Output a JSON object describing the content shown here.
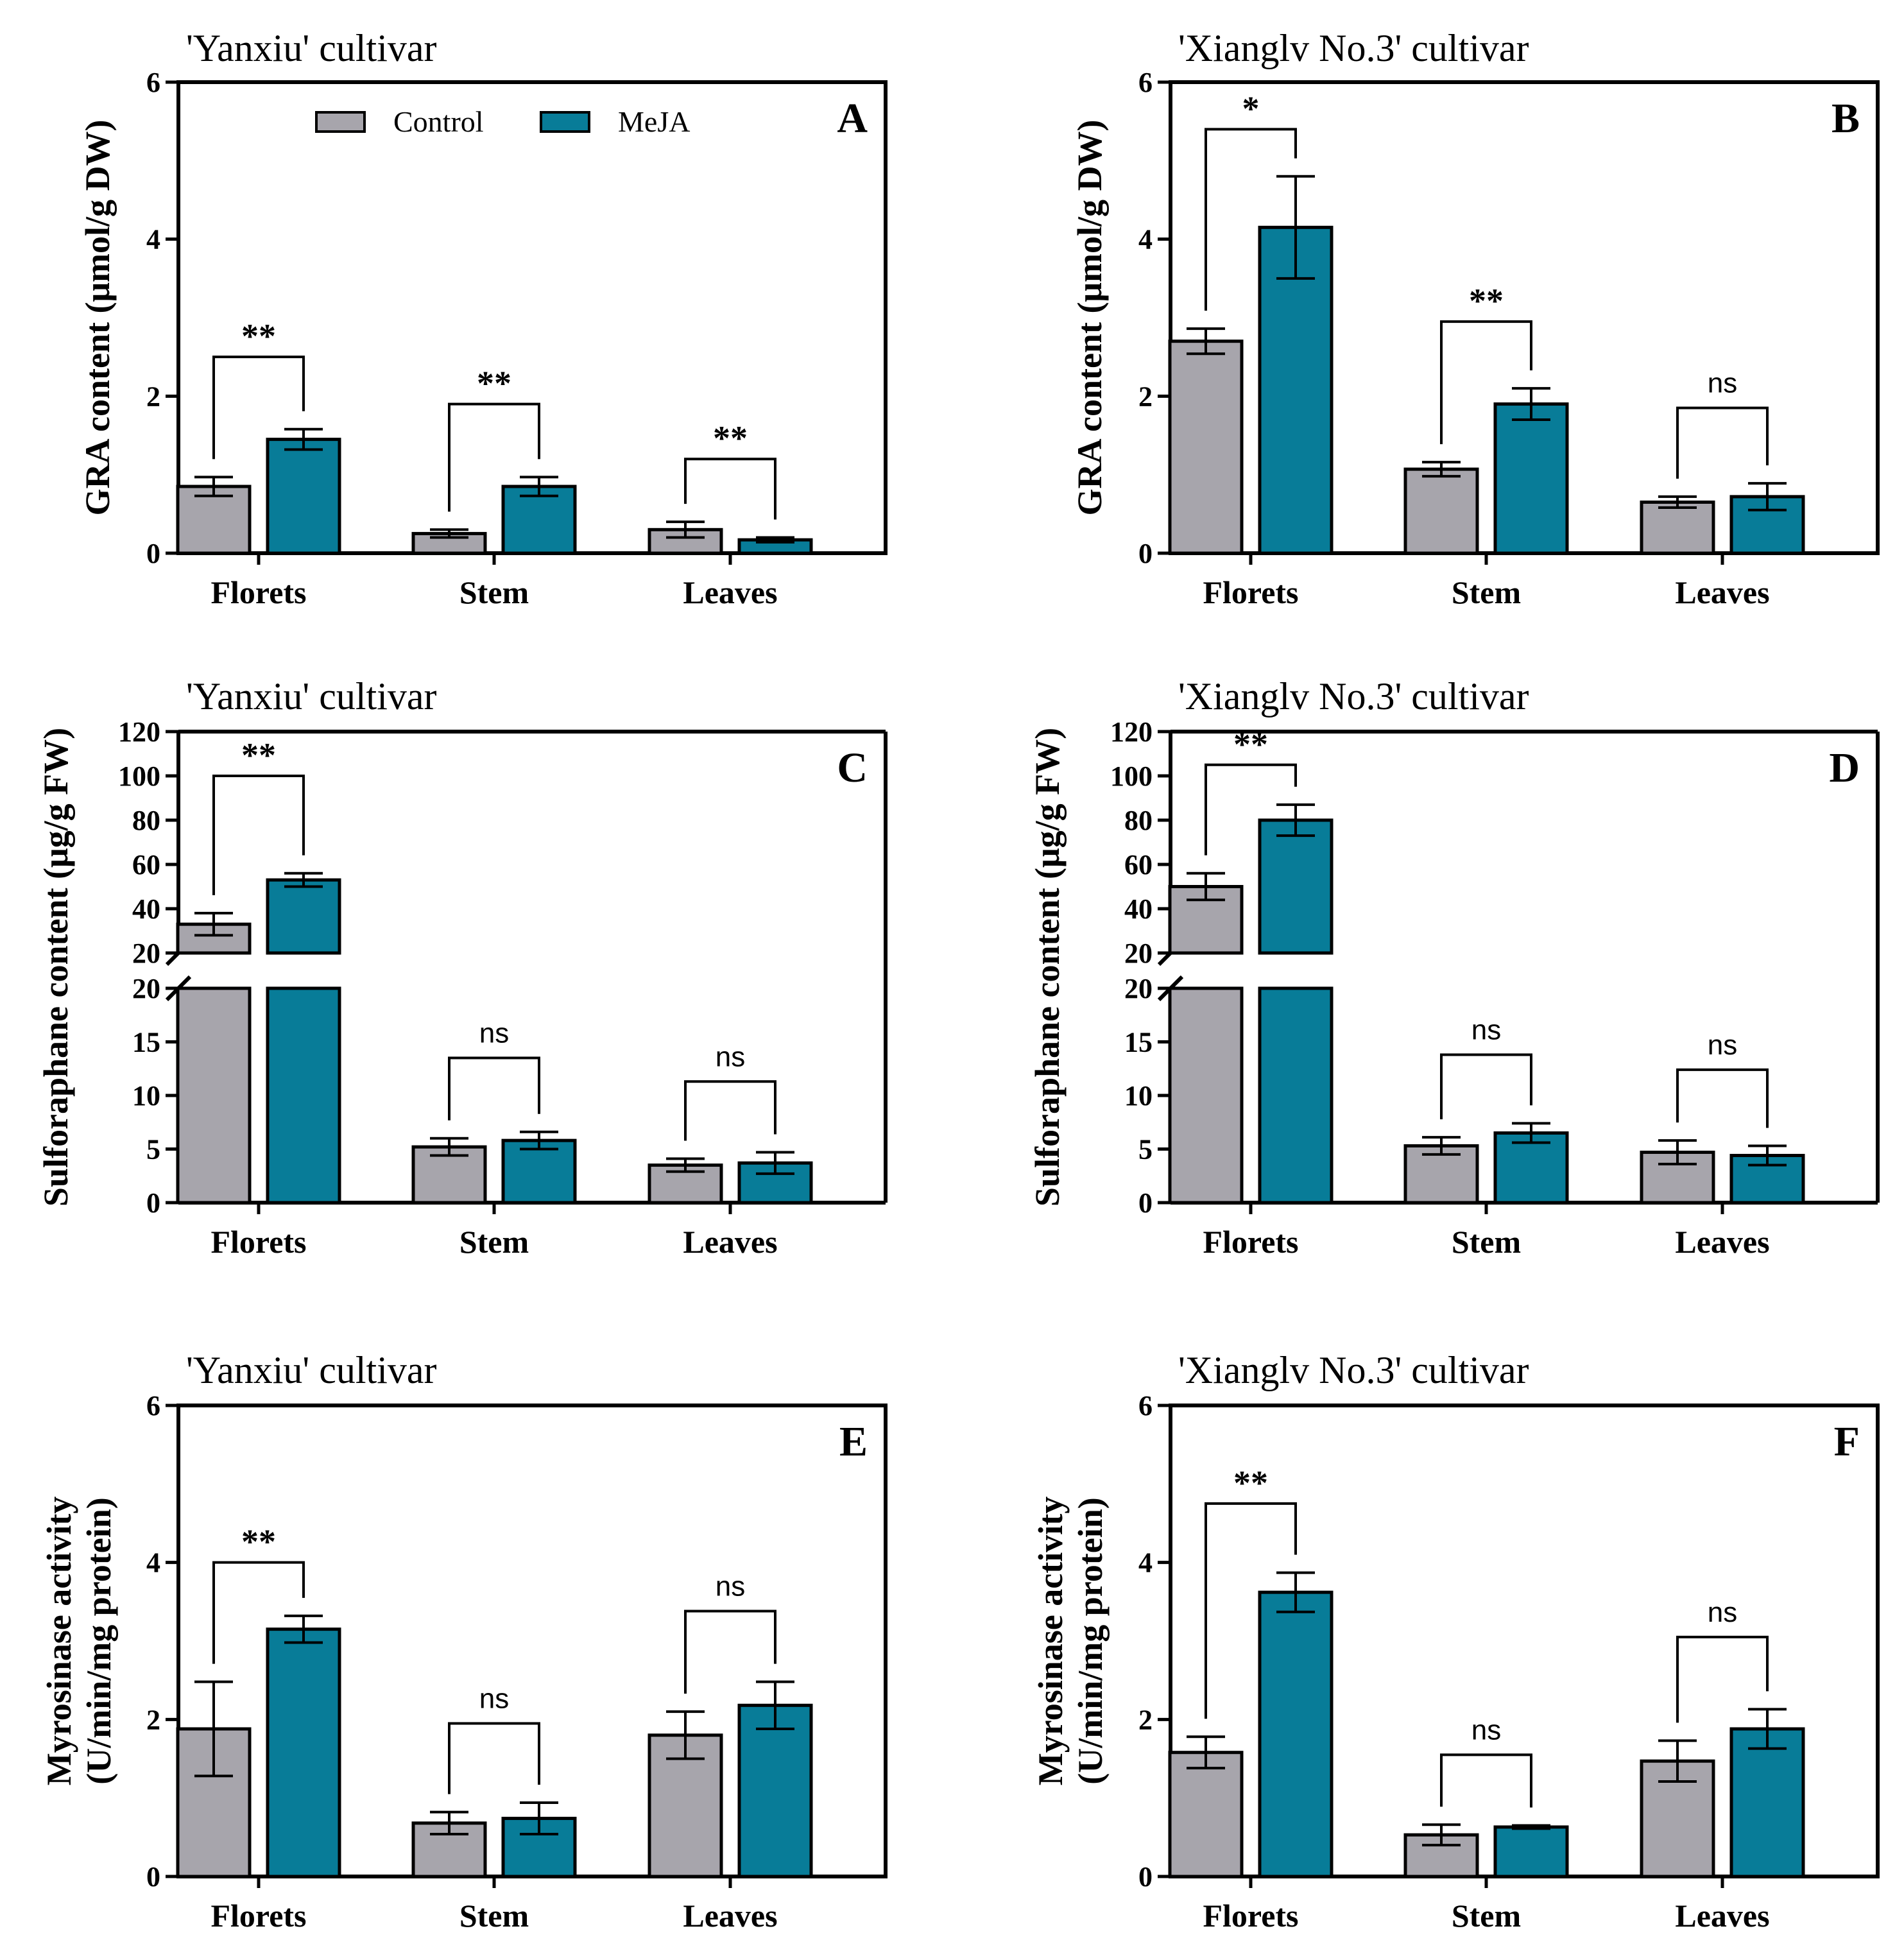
{
  "colors": {
    "control": "#a7a5ac",
    "meja": "#087c98",
    "stroke": "#000000"
  },
  "legend": {
    "control": "Control",
    "meja": "MeJA"
  },
  "chart_data": [
    {
      "type": "bar",
      "letter": "A",
      "title": "'Yanxiu' cultivar",
      "ylabel": [
        "GRA content  (μmol/g DW)"
      ],
      "categories": [
        "Florets",
        "Stem",
        "Leaves"
      ],
      "series": [
        {
          "name": "Control",
          "values": [
            0.85,
            0.25,
            0.3
          ],
          "err": [
            0.12,
            0.05,
            0.1
          ]
        },
        {
          "name": "MeJA",
          "values": [
            1.45,
            0.85,
            0.17
          ],
          "err": [
            0.13,
            0.12,
            0.03
          ]
        }
      ],
      "ylim": [
        0,
        6
      ],
      "yticks": [
        "0",
        "2",
        "4",
        "6"
      ],
      "sig": [
        "**",
        "**",
        "**"
      ],
      "sig_y": [
        2.5,
        1.9,
        1.2
      ]
    },
    {
      "type": "bar",
      "letter": "B",
      "title": "'Xianglv No.3' cultivar",
      "ylabel": [
        "GRA content  (μmol/g DW)"
      ],
      "categories": [
        "Florets",
        "Stem",
        "Leaves"
      ],
      "series": [
        {
          "name": "Control",
          "values": [
            2.7,
            1.07,
            0.65
          ],
          "err": [
            0.16,
            0.09,
            0.07
          ]
        },
        {
          "name": "MeJA",
          "values": [
            4.15,
            1.9,
            0.72
          ],
          "err": [
            0.65,
            0.2,
            0.17
          ]
        }
      ],
      "ylim": [
        0,
        6
      ],
      "yticks": [
        "0",
        "2",
        "4",
        "6"
      ],
      "sig": [
        "*",
        "**",
        "ns"
      ],
      "sig_y": [
        5.4,
        2.95,
        1.85
      ]
    },
    {
      "type": "bar",
      "letter": "C",
      "title": "'Yanxiu' cultivar",
      "ylabel": [
        "Sulforaphane content  (μg/g FW)"
      ],
      "categories": [
        "Florets",
        "Stem",
        "Leaves"
      ],
      "series": [
        {
          "name": "Control",
          "values": [
            33,
            5.2,
            3.5
          ],
          "err": [
            5,
            0.8,
            0.6
          ]
        },
        {
          "name": "MeJA",
          "values": [
            53,
            5.8,
            3.7
          ],
          "err": [
            3,
            0.8,
            1.0
          ]
        }
      ],
      "broken": true,
      "lower_ylim": [
        0,
        20
      ],
      "upper_ylim": [
        20,
        120
      ],
      "lower_ticks": [
        "0",
        "5",
        "10",
        "15",
        "20"
      ],
      "upper_ticks": [
        "20",
        "40",
        "60",
        "80",
        "100",
        "120"
      ],
      "sig": [
        "**",
        "ns",
        "ns"
      ],
      "sig_y": [
        100,
        13.5,
        11.3
      ]
    },
    {
      "type": "bar",
      "letter": "D",
      "title": "'Xianglv No.3' cultivar",
      "ylabel": [
        "Sulforaphane content  (μg/g FW)"
      ],
      "categories": [
        "Florets",
        "Stem",
        "Leaves"
      ],
      "series": [
        {
          "name": "Control",
          "values": [
            50,
            5.3,
            4.7
          ],
          "err": [
            6,
            0.8,
            1.1
          ]
        },
        {
          "name": "MeJA",
          "values": [
            80,
            6.5,
            4.4
          ],
          "err": [
            7,
            0.9,
            0.9
          ]
        }
      ],
      "broken": true,
      "lower_ylim": [
        0,
        20
      ],
      "upper_ylim": [
        20,
        120
      ],
      "lower_ticks": [
        "0",
        "5",
        "10",
        "15",
        "20"
      ],
      "upper_ticks": [
        "20",
        "40",
        "60",
        "80",
        "100",
        "120"
      ],
      "sig": [
        "**",
        "ns",
        "ns"
      ],
      "sig_y": [
        105,
        13.8,
        12.4
      ]
    },
    {
      "type": "bar",
      "letter": "E",
      "title": "'Yanxiu' cultivar",
      "ylabel": [
        "Myrosinase activity",
        "(U/min/mg protein)"
      ],
      "categories": [
        "Florets",
        "Stem",
        "Leaves"
      ],
      "series": [
        {
          "name": "Control",
          "values": [
            1.88,
            0.68,
            1.8
          ],
          "err": [
            0.6,
            0.14,
            0.3
          ]
        },
        {
          "name": "MeJA",
          "values": [
            3.15,
            0.74,
            2.18
          ],
          "err": [
            0.17,
            0.2,
            0.3
          ]
        }
      ],
      "ylim": [
        0,
        6
      ],
      "yticks": [
        "0",
        "2",
        "4",
        "6"
      ],
      "sig": [
        "**",
        "ns",
        "ns"
      ],
      "sig_y": [
        4.0,
        1.95,
        3.38
      ]
    },
    {
      "type": "bar",
      "letter": "F",
      "title": "'Xianglv No.3' cultivar",
      "ylabel": [
        "Myrosinase activity",
        "(U/min/mg protein)"
      ],
      "categories": [
        "Florets",
        "Stem",
        "Leaves"
      ],
      "series": [
        {
          "name": "Control",
          "values": [
            1.58,
            0.53,
            1.47
          ],
          "err": [
            0.2,
            0.13,
            0.26
          ]
        },
        {
          "name": "MeJA",
          "values": [
            3.62,
            0.63,
            1.88
          ],
          "err": [
            0.25,
            0.02,
            0.25
          ]
        }
      ],
      "ylim": [
        0,
        6
      ],
      "yticks": [
        "0",
        "2",
        "4",
        "6"
      ],
      "sig": [
        "**",
        "ns",
        "ns"
      ],
      "sig_y": [
        4.75,
        1.55,
        3.05
      ]
    }
  ]
}
